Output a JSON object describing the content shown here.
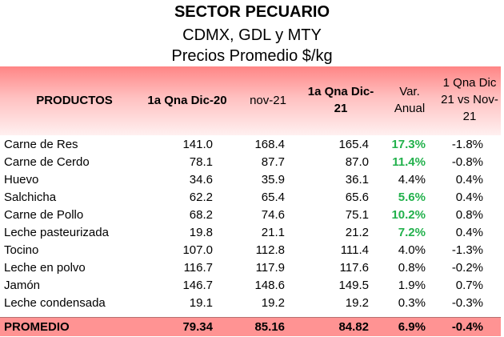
{
  "titles": {
    "line1": "SECTOR PECUARIO",
    "line2": "CDMX, GDL y MTY",
    "line3": "Precios Promedio $/kg"
  },
  "header": {
    "productos": "PRODUCTOS",
    "col1": "1a Qna Dic-20",
    "col2": "nov-21",
    "col3_l1": "1a Qna Dic-",
    "col3_l2": "21",
    "col4_l1": "Var.",
    "col4_l2": "Anual",
    "col5_l1": "1 Qna Dic",
    "col5_l2": "21 vs Nov-",
    "col5_l3": "21"
  },
  "highlight_color": "#22b14c",
  "chart_data": {
    "type": "table",
    "title": "SECTOR PECUARIO",
    "subtitle": "CDMX, GDL y MTY — Precios Promedio $/kg",
    "columns": [
      "PRODUCTOS",
      "1a Qna Dic-20",
      "nov-21",
      "1a Qna Dic-21",
      "Var. Anual",
      "1 Qna Dic 21 vs Nov-21"
    ],
    "rows": [
      {
        "producto": "Carne de Res",
        "dic20": "141.0",
        "nov21": "168.4",
        "dic21": "165.4",
        "var_anual": "17.3%",
        "var_mensual": "-1.8%",
        "highlight": true
      },
      {
        "producto": "Carne de Cerdo",
        "dic20": "78.1",
        "nov21": "87.7",
        "dic21": "87.0",
        "var_anual": "11.4%",
        "var_mensual": "-0.8%",
        "highlight": true
      },
      {
        "producto": "Huevo",
        "dic20": "34.6",
        "nov21": "35.9",
        "dic21": "36.1",
        "var_anual": "4.4%",
        "var_mensual": "0.4%",
        "highlight": false
      },
      {
        "producto": "Salchicha",
        "dic20": "62.2",
        "nov21": "65.4",
        "dic21": "65.6",
        "var_anual": "5.6%",
        "var_mensual": "0.4%",
        "highlight": true
      },
      {
        "producto": "Carne de Pollo",
        "dic20": "68.2",
        "nov21": "74.6",
        "dic21": "75.1",
        "var_anual": "10.2%",
        "var_mensual": "0.8%",
        "highlight": true
      },
      {
        "producto": "Leche pasteurizada",
        "dic20": "19.8",
        "nov21": "21.1",
        "dic21": "21.2",
        "var_anual": "7.2%",
        "var_mensual": "0.4%",
        "highlight": true
      },
      {
        "producto": "Tocino",
        "dic20": "107.0",
        "nov21": "112.8",
        "dic21": "111.4",
        "var_anual": "4.0%",
        "var_mensual": "-1.3%",
        "highlight": false
      },
      {
        "producto": "Leche en polvo",
        "dic20": "116.7",
        "nov21": "117.9",
        "dic21": "117.6",
        "var_anual": "0.8%",
        "var_mensual": "-0.2%",
        "highlight": false
      },
      {
        "producto": "Jamón",
        "dic20": "146.7",
        "nov21": "148.6",
        "dic21": "149.5",
        "var_anual": "1.9%",
        "var_mensual": "0.7%",
        "highlight": false
      },
      {
        "producto": "Leche condensada",
        "dic20": "19.1",
        "nov21": "19.2",
        "dic21": "19.2",
        "var_anual": "0.3%",
        "var_mensual": "-0.3%",
        "highlight": false
      }
    ],
    "footer": {
      "producto": "PROMEDIO",
      "dic20": "79.34",
      "nov21": "85.16",
      "dic21": "84.82",
      "var_anual": "6.9%",
      "var_mensual": "-0.4%"
    }
  }
}
